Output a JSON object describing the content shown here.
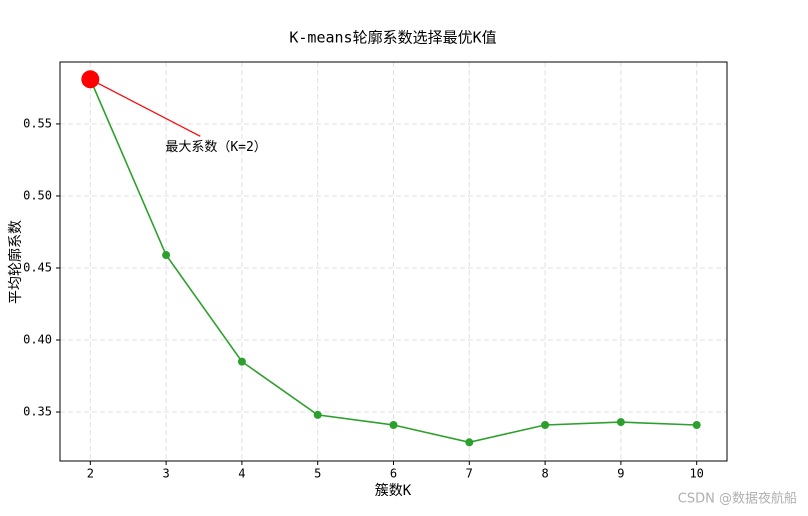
{
  "chart_data": {
    "type": "line",
    "title": "K-means轮廓系数选择最优K值",
    "x_label": "簇数K",
    "y_label": "平均轮廓系数",
    "x": [
      2,
      3,
      4,
      5,
      6,
      7,
      8,
      9,
      10
    ],
    "series": [
      {
        "name": "平均轮廓系数",
        "color": "#2ca02c",
        "values": [
          0.581,
          0.459,
          0.385,
          0.348,
          0.341,
          0.329,
          0.341,
          0.343,
          0.341
        ]
      }
    ],
    "highlight_color": "#ff0000",
    "annotation": "最大系数（K=2）",
    "xlim": [
      1.6,
      10.4
    ],
    "ylim": [
      0.316,
      0.593
    ],
    "xticks": [
      2,
      3,
      4,
      5,
      6,
      7,
      8,
      9,
      10
    ],
    "yticks": [
      0.35,
      {
        "value": 0.4,
        "label": "0.40"
      },
      0.45,
      {
        "value": 0.5,
        "label": "0.50"
      },
      0.55
    ],
    "grid": true,
    "watermark": "CSDN @数据夜航船"
  }
}
